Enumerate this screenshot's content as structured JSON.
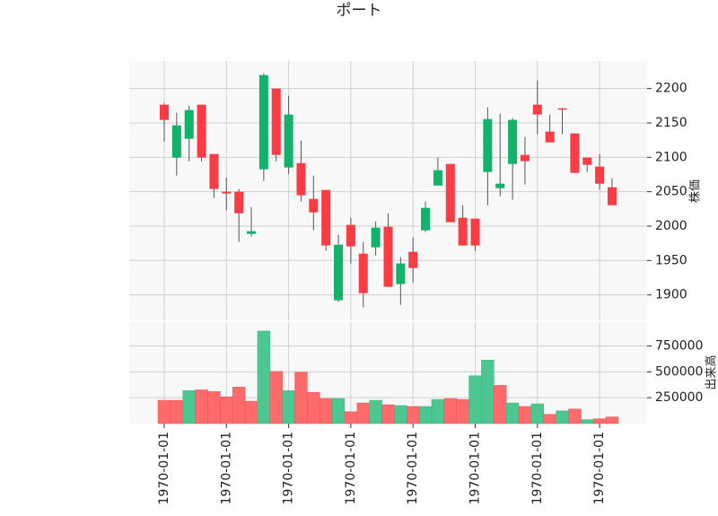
{
  "chart_data": {
    "type": "candlestick",
    "title": "ポート",
    "categories": [
      "1970-01-01",
      null,
      null,
      null,
      null,
      "1970-01-01",
      null,
      null,
      null,
      null,
      "1970-01-01",
      null,
      null,
      null,
      null,
      "1970-01-01",
      null,
      null,
      null,
      null,
      "1970-01-01",
      null,
      null,
      null,
      null,
      "1970-01-01",
      null,
      null,
      null,
      null,
      "1970-01-01",
      null,
      null,
      null,
      null,
      "1970-01-01",
      null
    ],
    "open": [
      2176.5,
      2099.6,
      2127.0,
      2176.5,
      2104.8,
      2050.0,
      2050.0,
      1988.7,
      2082.6,
      2200.0,
      2085.2,
      2091.7,
      2039.6,
      2052.6,
      1892.2,
      2001.8,
      1960.0,
      1969.2,
      1999.1,
      1915.7,
      1962.6,
      1993.9,
      2059.0,
      2090.4,
      2012.2,
      2010.9,
      2078.7,
      2055.2,
      2090.4,
      2103.5,
      2176.5,
      2137.4,
      2171.3,
      2134.8,
      2099.6,
      2086.5,
      2056.5
    ],
    "high": [
      2179.0,
      2164.8,
      2175.0,
      2176.5,
      2104.8,
      2070.0,
      2054.0,
      2027.8,
      2222.0,
      2200.0,
      2189.6,
      2124.4,
      2073.5,
      2052.6,
      1987.4,
      2012.2,
      1977.0,
      2007.0,
      2018.7,
      1954.8,
      1983.5,
      2035.7,
      2099.6,
      2090.4,
      2030.4,
      2010.9,
      2172.6,
      2163.5,
      2157.0,
      2129.6,
      2211.7,
      2162.2,
      2171.3,
      2134.8,
      2099.6,
      2104.8,
      2069.6
    ],
    "low": [
      2123.0,
      2073.5,
      2094.0,
      2094.0,
      2041.0,
      2023.0,
      1977.0,
      1984.8,
      2065.7,
      2094.0,
      2076.0,
      2035.7,
      1994.0,
      1964.0,
      1889.6,
      1945.7,
      1881.8,
      1957.4,
      1911.8,
      1885.6,
      1918.3,
      1991.3,
      2059.0,
      2005.7,
      1971.8,
      1964.0,
      2030.4,
      2043.5,
      2038.3,
      2060.4,
      2133.5,
      2121.7,
      2133.5,
      2077.4,
      2078.7,
      2052.6,
      2030.4
    ],
    "close": [
      2154.4,
      2146.5,
      2168.7,
      2099.6,
      2054.0,
      2047.4,
      2018.7,
      1992.6,
      2219.6,
      2103.5,
      2162.2,
      2044.8,
      2020.0,
      1971.8,
      1973.0,
      1970.5,
      1902.6,
      1997.8,
      1911.8,
      1945.7,
      1939.1,
      2026.5,
      2081.3,
      2005.7,
      1971.8,
      1971.8,
      2155.7,
      2061.7,
      2154.4,
      2094.4,
      2162.2,
      2121.7,
      2170.0,
      2077.4,
      2089.1,
      2061.7,
      2030.4
    ],
    "up_color": "#13b26b",
    "down_color": "#fb3c44",
    "volume_up_color": "#4dc791",
    "volume_down_color": "#ff6b6b",
    "ylabel": "株価",
    "ylim": [
      1863,
      2240
    ],
    "yticks": [
      1900,
      1950,
      2000,
      2050,
      2100,
      2150,
      2200
    ],
    "volume": {
      "ylabel": "出来高",
      "ylim": [
        0,
        980000
      ],
      "yticks": [
        250000,
        500000,
        750000
      ],
      "values": [
        225000,
        225000,
        318000,
        326000,
        309000,
        258000,
        352000,
        216000,
        894000,
        504000,
        318000,
        496000,
        301000,
        242000,
        242000,
        114000,
        199000,
        225000,
        182000,
        174000,
        165000,
        165000,
        233000,
        242000,
        233000,
        462000,
        614000,
        369000,
        199000,
        165000,
        191000,
        89000,
        123000,
        140000,
        38000,
        46000,
        64000
      ]
    },
    "grid": true
  }
}
